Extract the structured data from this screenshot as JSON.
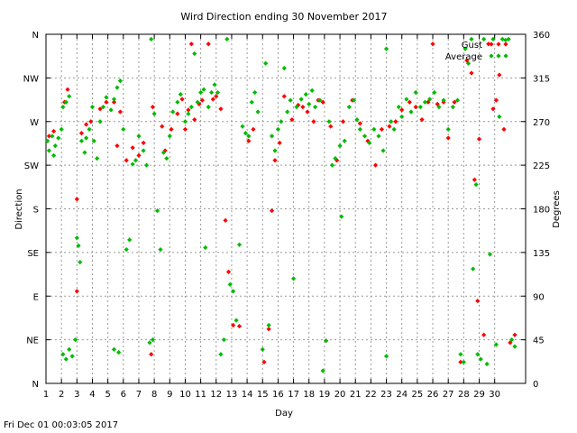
{
  "chart_data": {
    "type": "scatter",
    "title": "Wird Direction ending 30 November 2017",
    "xlabel": "Day",
    "ylabel_left": "Direction",
    "ylabel_right": "Degrees",
    "xlim": [
      1,
      32
    ],
    "ylim": [
      0,
      360
    ],
    "x_ticks": [
      1,
      2,
      3,
      4,
      5,
      6,
      7,
      8,
      9,
      10,
      11,
      12,
      13,
      14,
      15,
      16,
      17,
      18,
      19,
      20,
      21,
      22,
      23,
      24,
      25,
      26,
      27,
      28,
      29,
      30
    ],
    "y_ticks_left": [
      {
        "value": 0,
        "label": "N"
      },
      {
        "value": 45,
        "label": "NE"
      },
      {
        "value": 90,
        "label": "E"
      },
      {
        "value": 135,
        "label": "SE"
      },
      {
        "value": 180,
        "label": "S"
      },
      {
        "value": 225,
        "label": "SW"
      },
      {
        "value": 270,
        "label": "W"
      },
      {
        "value": 315,
        "label": "NW"
      },
      {
        "value": 360,
        "label": "N"
      }
    ],
    "y_ticks_right": [
      0,
      45,
      90,
      135,
      180,
      225,
      270,
      315,
      360
    ],
    "grid": true,
    "legend_position": "top-right",
    "series": [
      {
        "name": "Gust",
        "color": "#ff0000",
        "points": [
          [
            1.2,
            255
          ],
          [
            1.5,
            260
          ],
          [
            2.2,
            290
          ],
          [
            2.4,
            303
          ],
          [
            3.0,
            95
          ],
          [
            3.0,
            190
          ],
          [
            3.3,
            258
          ],
          [
            3.6,
            267
          ],
          [
            3.9,
            270
          ],
          [
            4.5,
            283
          ],
          [
            4.9,
            290
          ],
          [
            5.4,
            290
          ],
          [
            5.8,
            280
          ],
          [
            5.6,
            245
          ],
          [
            6.2,
            230
          ],
          [
            6.6,
            243
          ],
          [
            7.0,
            235
          ],
          [
            7.3,
            248
          ],
          [
            7.8,
            30
          ],
          [
            7.9,
            285
          ],
          [
            8.5,
            265
          ],
          [
            8.7,
            240
          ],
          [
            9.1,
            262
          ],
          [
            9.5,
            278
          ],
          [
            9.8,
            293
          ],
          [
            10.0,
            262
          ],
          [
            10.2,
            282
          ],
          [
            10.4,
            350
          ],
          [
            10.6,
            272
          ],
          [
            10.9,
            288
          ],
          [
            11.1,
            292
          ],
          [
            11.5,
            350
          ],
          [
            11.8,
            293
          ],
          [
            12.0,
            296
          ],
          [
            12.3,
            283
          ],
          [
            12.6,
            168
          ],
          [
            12.8,
            115
          ],
          [
            13.1,
            60
          ],
          [
            13.5,
            59
          ],
          [
            14.1,
            250
          ],
          [
            14.4,
            262
          ],
          [
            15.1,
            22
          ],
          [
            15.4,
            56
          ],
          [
            15.6,
            178
          ],
          [
            15.8,
            230
          ],
          [
            16.1,
            248
          ],
          [
            16.4,
            296
          ],
          [
            16.9,
            272
          ],
          [
            17.3,
            287
          ],
          [
            17.6,
            285
          ],
          [
            17.9,
            280
          ],
          [
            18.3,
            270
          ],
          [
            18.6,
            292
          ],
          [
            18.9,
            290
          ],
          [
            19.1,
            44
          ],
          [
            19.4,
            265
          ],
          [
            19.8,
            230
          ],
          [
            20.2,
            270
          ],
          [
            20.8,
            292
          ],
          [
            21.3,
            268
          ],
          [
            21.8,
            250
          ],
          [
            22.3,
            225
          ],
          [
            22.7,
            262
          ],
          [
            23.2,
            265
          ],
          [
            23.6,
            270
          ],
          [
            24.0,
            282
          ],
          [
            24.5,
            290
          ],
          [
            24.9,
            285
          ],
          [
            25.3,
            272
          ],
          [
            25.7,
            290
          ],
          [
            26.0,
            350
          ],
          [
            26.3,
            288
          ],
          [
            26.7,
            290
          ],
          [
            27.0,
            253
          ],
          [
            27.4,
            290
          ],
          [
            27.8,
            22
          ],
          [
            28.2,
            333
          ],
          [
            28.5,
            320
          ],
          [
            28.7,
            210
          ],
          [
            28.9,
            85
          ],
          [
            29.0,
            252
          ],
          [
            29.3,
            50
          ],
          [
            29.6,
            350
          ],
          [
            29.9,
            283
          ],
          [
            30.1,
            292
          ],
          [
            30.3,
            318
          ],
          [
            30.6,
            262
          ],
          [
            31.0,
            42
          ],
          [
            31.3,
            50
          ]
        ]
      },
      {
        "name": "Average",
        "color": "#00bb00",
        "points": [
          [
            1.1,
            250
          ],
          [
            1.2,
            240
          ],
          [
            1.4,
            255
          ],
          [
            1.5,
            235
          ],
          [
            1.6,
            245
          ],
          [
            1.8,
            253
          ],
          [
            2.0,
            262
          ],
          [
            2.1,
            285
          ],
          [
            2.3,
            290
          ],
          [
            2.5,
            296
          ],
          [
            2.1,
            30
          ],
          [
            2.3,
            25
          ],
          [
            2.5,
            35
          ],
          [
            2.7,
            28
          ],
          [
            2.9,
            45
          ],
          [
            3.0,
            150
          ],
          [
            3.1,
            142
          ],
          [
            3.2,
            125
          ],
          [
            3.3,
            250
          ],
          [
            3.5,
            238
          ],
          [
            3.6,
            253
          ],
          [
            3.8,
            262
          ],
          [
            4.0,
            285
          ],
          [
            4.1,
            250
          ],
          [
            4.3,
            232
          ],
          [
            4.5,
            270
          ],
          [
            4.7,
            285
          ],
          [
            4.9,
            295
          ],
          [
            5.2,
            282
          ],
          [
            5.4,
            293
          ],
          [
            5.6,
            305
          ],
          [
            5.8,
            312
          ],
          [
            5.4,
            35
          ],
          [
            5.7,
            32
          ],
          [
            6.0,
            262
          ],
          [
            6.2,
            138
          ],
          [
            6.4,
            148
          ],
          [
            6.6,
            226
          ],
          [
            6.8,
            230
          ],
          [
            7.0,
            255
          ],
          [
            7.3,
            240
          ],
          [
            7.5,
            225
          ],
          [
            7.8,
            355
          ],
          [
            7.7,
            42
          ],
          [
            7.9,
            45
          ],
          [
            8.0,
            278
          ],
          [
            8.2,
            178
          ],
          [
            8.4,
            138
          ],
          [
            8.6,
            238
          ],
          [
            8.8,
            232
          ],
          [
            9.0,
            255
          ],
          [
            9.2,
            280
          ],
          [
            9.5,
            290
          ],
          [
            9.7,
            298
          ],
          [
            10.0,
            270
          ],
          [
            10.2,
            278
          ],
          [
            10.4,
            285
          ],
          [
            10.6,
            340
          ],
          [
            10.8,
            290
          ],
          [
            11.0,
            300
          ],
          [
            11.2,
            303
          ],
          [
            11.3,
            140
          ],
          [
            11.5,
            285
          ],
          [
            11.7,
            300
          ],
          [
            11.9,
            308
          ],
          [
            12.1,
            300
          ],
          [
            12.3,
            30
          ],
          [
            12.5,
            45
          ],
          [
            12.7,
            355
          ],
          [
            12.9,
            102
          ],
          [
            13.1,
            95
          ],
          [
            13.3,
            65
          ],
          [
            13.5,
            143
          ],
          [
            13.7,
            265
          ],
          [
            13.9,
            258
          ],
          [
            14.1,
            255
          ],
          [
            14.3,
            290
          ],
          [
            14.5,
            300
          ],
          [
            14.7,
            280
          ],
          [
            15.0,
            35
          ],
          [
            15.2,
            330
          ],
          [
            15.4,
            60
          ],
          [
            15.6,
            255
          ],
          [
            15.8,
            240
          ],
          [
            16.0,
            262
          ],
          [
            16.2,
            270
          ],
          [
            16.4,
            325
          ],
          [
            16.6,
            280
          ],
          [
            16.8,
            292
          ],
          [
            17.0,
            108
          ],
          [
            17.2,
            285
          ],
          [
            17.5,
            293
          ],
          [
            17.8,
            298
          ],
          [
            18.0,
            288
          ],
          [
            18.2,
            302
          ],
          [
            18.4,
            285
          ],
          [
            18.7,
            292
          ],
          [
            18.9,
            13
          ],
          [
            19.1,
            44
          ],
          [
            19.3,
            270
          ],
          [
            19.5,
            225
          ],
          [
            19.7,
            232
          ],
          [
            20.0,
            245
          ],
          [
            20.1,
            172
          ],
          [
            20.3,
            250
          ],
          [
            20.6,
            285
          ],
          [
            20.9,
            292
          ],
          [
            21.1,
            272
          ],
          [
            21.3,
            262
          ],
          [
            21.6,
            255
          ],
          [
            21.9,
            248
          ],
          [
            22.2,
            262
          ],
          [
            22.5,
            255
          ],
          [
            22.8,
            240
          ],
          [
            23.0,
            345
          ],
          [
            23.0,
            28
          ],
          [
            23.3,
            270
          ],
          [
            23.5,
            262
          ],
          [
            23.8,
            285
          ],
          [
            24.0,
            275
          ],
          [
            24.3,
            293
          ],
          [
            24.6,
            280
          ],
          [
            24.9,
            300
          ],
          [
            25.2,
            285
          ],
          [
            25.5,
            290
          ],
          [
            25.8,
            293
          ],
          [
            26.1,
            300
          ],
          [
            26.4,
            285
          ],
          [
            26.7,
            292
          ],
          [
            27.0,
            262
          ],
          [
            27.3,
            285
          ],
          [
            27.6,
            292
          ],
          [
            27.8,
            30
          ],
          [
            28.0,
            22
          ],
          [
            28.1,
            345
          ],
          [
            28.3,
            330
          ],
          [
            28.5,
            355
          ],
          [
            28.6,
            118
          ],
          [
            28.8,
            205
          ],
          [
            28.9,
            30
          ],
          [
            29.1,
            25
          ],
          [
            29.3,
            355
          ],
          [
            29.5,
            20
          ],
          [
            29.7,
            133
          ],
          [
            29.9,
            355
          ],
          [
            30.1,
            40
          ],
          [
            30.3,
            275
          ],
          [
            30.5,
            355
          ],
          [
            30.7,
            354
          ],
          [
            30.9,
            355
          ],
          [
            31.1,
            45
          ],
          [
            31.3,
            38
          ]
        ]
      }
    ]
  },
  "footer": {
    "timestamp": "Fri Dec 01 00:03:05 2017"
  }
}
